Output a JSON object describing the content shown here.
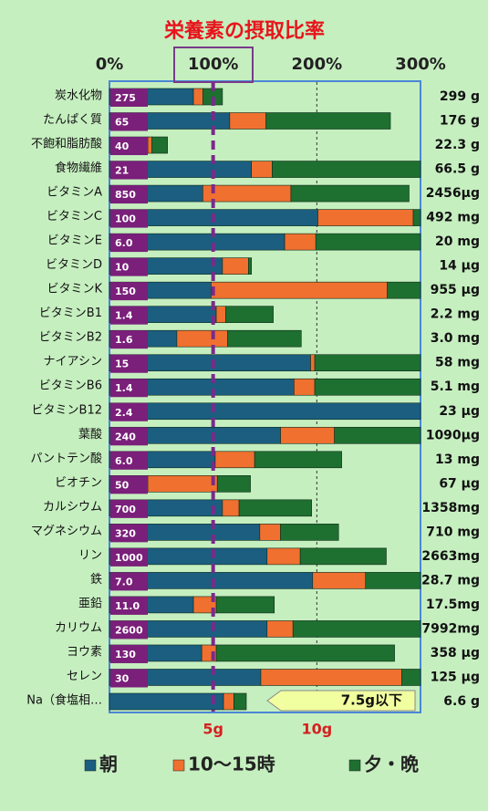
{
  "chart_data": {
    "type": "stacked-barh",
    "title": "栄養素の摂取比率",
    "xlim": [
      0,
      300
    ],
    "xticks": [
      {
        "value": 0,
        "label": "0%"
      },
      {
        "value": 100,
        "label": "100%"
      },
      {
        "value": 200,
        "label": "200%"
      },
      {
        "value": 300,
        "label": "300%"
      }
    ],
    "x2ticks": [
      {
        "value": 100,
        "label": "5g"
      },
      {
        "value": 200,
        "label": "10g"
      }
    ],
    "categories": [
      "炭水化物",
      "たんぱく質",
      "不飽和脂肪酸",
      "食物繊維",
      "ビタミンA",
      "ビタミンC",
      "ビタミンE",
      "ビタミンD",
      "ビタミンK",
      "ビタミンB1",
      "ビタミンB2",
      "ナイアシン",
      "ビタミンB6",
      "ビタミンB12",
      "葉酸",
      "パントテン酸",
      "ビオチン",
      "カルシウム",
      "マグネシウム",
      "リン",
      "鉄",
      "亜鉛",
      "カリウム",
      "ヨウ素",
      "セレン",
      "Na（食塩相…"
    ],
    "standards": [
      "275",
      "65",
      "40",
      "21",
      "850",
      "100",
      "6.0",
      "10",
      "150",
      "1.4",
      "1.6",
      "15",
      "1.4",
      "2.4",
      "240",
      "6.0",
      "50",
      "700",
      "320",
      "1000",
      "7.0",
      "11.0",
      "2600",
      "130",
      "30",
      null
    ],
    "amounts": [
      "299 g",
      "176 g",
      "22.3 g",
      "66.5 g",
      "2456μg",
      "492 mg",
      "20 mg",
      "14 μg",
      "955 μg",
      "2.2 mg",
      "3.0 mg",
      "58 mg",
      "5.1 mg",
      "23 μg",
      "1090μg",
      "13 mg",
      "67 μg",
      "1358mg",
      "710 mg",
      "2663mg",
      "28.7 mg",
      "17.5mg",
      "7992mg",
      "358 μg",
      "125 μg",
      "6.6 g"
    ],
    "series": [
      {
        "name": "朝",
        "color": "#1b5e80",
        "values": [
          81,
          116,
          37,
          137,
          90,
          201,
          169,
          109,
          98,
          103,
          65,
          194,
          178,
          300,
          165,
          102,
          37,
          109,
          145,
          152,
          196,
          81,
          152,
          89,
          146,
          110
        ]
      },
      {
        "name": "10～15時",
        "color": "#f07030",
        "values": [
          9,
          35,
          4,
          20,
          85,
          92,
          30,
          25,
          170,
          9,
          49,
          4,
          20,
          0,
          52,
          38,
          67,
          16,
          20,
          32,
          51,
          22,
          25,
          14,
          136,
          10
        ]
      },
      {
        "name": "夕・晩",
        "color": "#1e7030",
        "values": [
          19,
          120,
          15,
          143,
          114,
          7,
          101,
          3,
          32,
          46,
          71,
          102,
          102,
          0,
          83,
          84,
          32,
          70,
          56,
          83,
          53,
          56,
          123,
          172,
          18,
          12
        ]
      }
    ],
    "annotation": "7.5g以下",
    "reference_line": 100
  }
}
